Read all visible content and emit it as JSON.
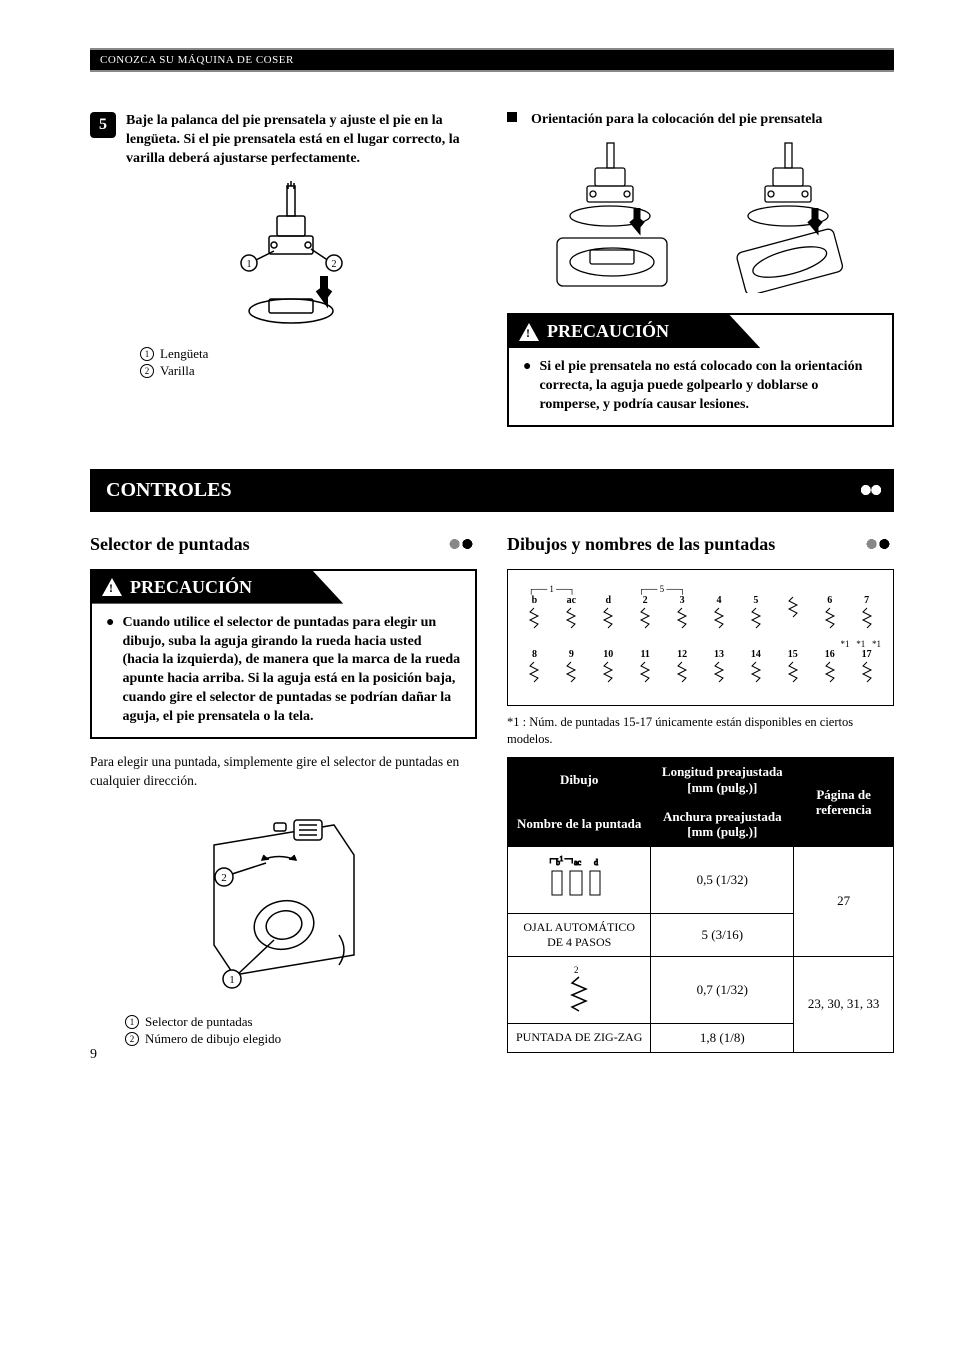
{
  "header": "CONOZCA SU MÁQUINA DE COSER",
  "step5": {
    "num": "5",
    "text": "Baje la palanca del pie prensatela y ajuste el pie en la lengüeta. Si el pie prensatela está en el lugar correcto, la varilla deberá ajustarse perfectamente."
  },
  "legend1": {
    "a": "Lengüeta",
    "b": "Varilla"
  },
  "orient": {
    "title": "Orientación para la colocación del pie prensatela"
  },
  "caution_label": "PRECAUCIÓN",
  "caution1": "Si el pie prensatela no está colocado con la orientación correcta, la aguja puede golpearlo y doblarse o romperse, y podría causar lesiones.",
  "section_controles": "CONTROLES",
  "sub_selector": "Selector de puntadas",
  "caution2": "Cuando utilice el selector de puntadas para elegir un dibujo, suba la aguja girando la rueda hacia usted (hacia la izquierda), de manera que la marca de la rueda apunte hacia arriba. Si la aguja está en la posición baja, cuando gire el selector de puntadas se podrían dañar la aguja, el pie prensatela o la tela.",
  "para_selector": "Para elegir una puntada, simplemente gire el selector de puntadas en cualquier dirección.",
  "legend2": {
    "a": "Selector de puntadas",
    "b": "Número de dibujo elegido"
  },
  "sub_dibujos": "Dibujos y nombres de las puntadas",
  "footnote": "*1 : Núm. de puntadas 15-17 únicamente están disponibles en ciertos modelos.",
  "table": {
    "h_dibujo": "Dibujo",
    "h_nombre": "Nombre de la puntada",
    "h_long": "Longitud preajustada [mm (pulg.)]",
    "h_anch": "Anchura preajustada [mm (pulg.)]",
    "h_pag": "Página de referencia",
    "r1_name": "OJAL AUTOMÁTICO DE 4 PASOS",
    "r1_long": "0,5 (1/32)",
    "r1_anch": "5 (3/16)",
    "r1_pag": "27",
    "r2_name": "PUNTADA DE ZIG-ZAG",
    "r2_long": "0,7 (1/32)",
    "r2_anch": "1,8 (1/8)",
    "r2_pag": "23, 30, 31, 33"
  },
  "stitches_top": [
    "b",
    "ac",
    "d",
    "2",
    "3",
    "4",
    "5",
    "",
    "6",
    "7"
  ],
  "stitches_bot": [
    "8",
    "9",
    "10",
    "11",
    "12",
    "13",
    "14",
    "15",
    "16",
    "17"
  ],
  "star": "*1",
  "page_num": "9"
}
